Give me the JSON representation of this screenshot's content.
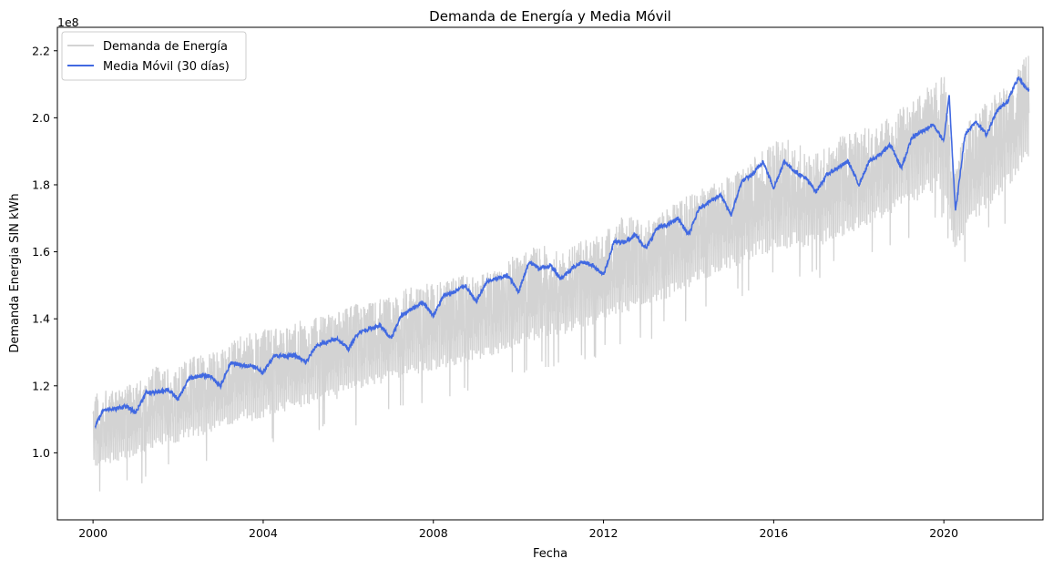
{
  "chart_data": {
    "type": "line",
    "title": "Demanda de Energía y Media Móvil",
    "xlabel": "Fecha",
    "ylabel": "Demanda Energia SIN kWh",
    "y_offset_label": "1e8",
    "xlim": [
      "1999-03-01",
      "2022-05-01"
    ],
    "ylim": [
      0.8,
      2.27
    ],
    "x_ticks": [
      "2000",
      "2004",
      "2008",
      "2012",
      "2016",
      "2020"
    ],
    "y_ticks": [
      "1.0",
      "1.2",
      "1.4",
      "1.6",
      "1.8",
      "2.0",
      "2.2"
    ],
    "legend_position": "upper-left",
    "grid": false,
    "series": [
      {
        "name": "Demanda de Energía",
        "color": "#d3d3d3",
        "kind": "daily-band",
        "x": [
          "2000-01-01",
          "2000-07-01",
          "2001-01-01",
          "2001-07-01",
          "2002-01-01",
          "2002-07-01",
          "2003-01-01",
          "2003-07-01",
          "2004-01-01",
          "2004-07-01",
          "2005-01-01",
          "2005-07-01",
          "2006-01-01",
          "2006-07-01",
          "2007-01-01",
          "2007-07-01",
          "2008-01-01",
          "2008-07-01",
          "2009-01-01",
          "2009-07-01",
          "2010-01-01",
          "2010-07-01",
          "2011-01-01",
          "2011-07-01",
          "2012-01-01",
          "2012-07-01",
          "2013-01-01",
          "2013-07-01",
          "2014-01-01",
          "2014-07-01",
          "2015-01-01",
          "2015-07-01",
          "2016-01-01",
          "2016-07-01",
          "2017-01-01",
          "2017-07-01",
          "2018-01-01",
          "2018-07-01",
          "2019-01-01",
          "2019-07-01",
          "2020-01-01",
          "2020-04-01",
          "2020-07-01",
          "2021-01-01",
          "2021-07-01",
          "2022-01-01"
        ],
        "upper": [
          1.18,
          1.19,
          1.21,
          1.26,
          1.27,
          1.3,
          1.31,
          1.35,
          1.37,
          1.38,
          1.4,
          1.41,
          1.44,
          1.45,
          1.47,
          1.5,
          1.51,
          1.53,
          1.53,
          1.55,
          1.6,
          1.62,
          1.61,
          1.64,
          1.66,
          1.71,
          1.69,
          1.73,
          1.77,
          1.8,
          1.83,
          1.88,
          1.93,
          1.94,
          1.91,
          1.95,
          1.96,
          2.0,
          2.03,
          2.08,
          2.14,
          1.83,
          1.98,
          2.05,
          2.1,
          2.2
        ],
        "lower": [
          0.95,
          0.97,
          0.99,
          1.02,
          1.03,
          1.05,
          1.07,
          1.09,
          1.1,
          1.12,
          1.14,
          1.15,
          1.17,
          1.19,
          1.21,
          1.23,
          1.24,
          1.26,
          1.27,
          1.29,
          1.32,
          1.34,
          1.35,
          1.37,
          1.39,
          1.42,
          1.43,
          1.46,
          1.49,
          1.52,
          1.55,
          1.58,
          1.6,
          1.61,
          1.61,
          1.64,
          1.66,
          1.69,
          1.72,
          1.76,
          1.79,
          1.6,
          1.66,
          1.73,
          1.79,
          1.88
        ]
      },
      {
        "name": "Media Móvil (30 días)",
        "color": "#4169e1",
        "kind": "line",
        "x": [
          "2000-01-20",
          "2000-04-01",
          "2000-07-01",
          "2000-10-01",
          "2001-01-01",
          "2001-04-01",
          "2001-07-01",
          "2001-10-01",
          "2002-01-01",
          "2002-04-01",
          "2002-07-01",
          "2002-10-01",
          "2003-01-01",
          "2003-04-01",
          "2003-07-01",
          "2003-10-01",
          "2004-01-01",
          "2004-04-01",
          "2004-07-01",
          "2004-10-01",
          "2005-01-01",
          "2005-04-01",
          "2005-07-01",
          "2005-10-01",
          "2006-01-01",
          "2006-04-01",
          "2006-07-01",
          "2006-10-01",
          "2007-01-01",
          "2007-04-01",
          "2007-07-01",
          "2007-10-01",
          "2008-01-01",
          "2008-04-01",
          "2008-07-01",
          "2008-10-01",
          "2009-01-01",
          "2009-04-01",
          "2009-07-01",
          "2009-10-01",
          "2010-01-01",
          "2010-04-01",
          "2010-07-01",
          "2010-10-01",
          "2011-01-01",
          "2011-04-01",
          "2011-07-01",
          "2011-10-01",
          "2012-01-01",
          "2012-04-01",
          "2012-07-01",
          "2012-10-01",
          "2013-01-01",
          "2013-04-01",
          "2013-07-01",
          "2013-10-01",
          "2014-01-01",
          "2014-04-01",
          "2014-07-01",
          "2014-10-01",
          "2015-01-01",
          "2015-04-01",
          "2015-07-01",
          "2015-10-01",
          "2016-01-01",
          "2016-04-01",
          "2016-07-01",
          "2016-10-01",
          "2017-01-01",
          "2017-04-01",
          "2017-07-01",
          "2017-10-01",
          "2018-01-01",
          "2018-04-01",
          "2018-07-01",
          "2018-10-01",
          "2019-01-01",
          "2019-04-01",
          "2019-07-01",
          "2019-10-01",
          "2020-01-01",
          "2020-02-15",
          "2020-04-10",
          "2020-07-01",
          "2020-10-01",
          "2021-01-01",
          "2021-04-01",
          "2021-07-01",
          "2021-10-01",
          "2021-12-31"
        ],
        "values": [
          1.08,
          1.13,
          1.13,
          1.14,
          1.12,
          1.18,
          1.18,
          1.19,
          1.16,
          1.22,
          1.23,
          1.23,
          1.2,
          1.27,
          1.26,
          1.26,
          1.24,
          1.29,
          1.29,
          1.29,
          1.27,
          1.32,
          1.33,
          1.34,
          1.31,
          1.36,
          1.37,
          1.38,
          1.34,
          1.41,
          1.43,
          1.45,
          1.41,
          1.47,
          1.48,
          1.5,
          1.45,
          1.51,
          1.52,
          1.53,
          1.48,
          1.57,
          1.55,
          1.56,
          1.52,
          1.55,
          1.57,
          1.56,
          1.53,
          1.63,
          1.63,
          1.65,
          1.61,
          1.67,
          1.68,
          1.7,
          1.65,
          1.73,
          1.75,
          1.77,
          1.71,
          1.81,
          1.83,
          1.87,
          1.79,
          1.87,
          1.84,
          1.82,
          1.78,
          1.83,
          1.85,
          1.87,
          1.8,
          1.87,
          1.89,
          1.92,
          1.85,
          1.94,
          1.96,
          1.98,
          1.93,
          2.07,
          1.72,
          1.95,
          1.99,
          1.95,
          2.02,
          2.05,
          2.12,
          2.08
        ]
      }
    ]
  }
}
